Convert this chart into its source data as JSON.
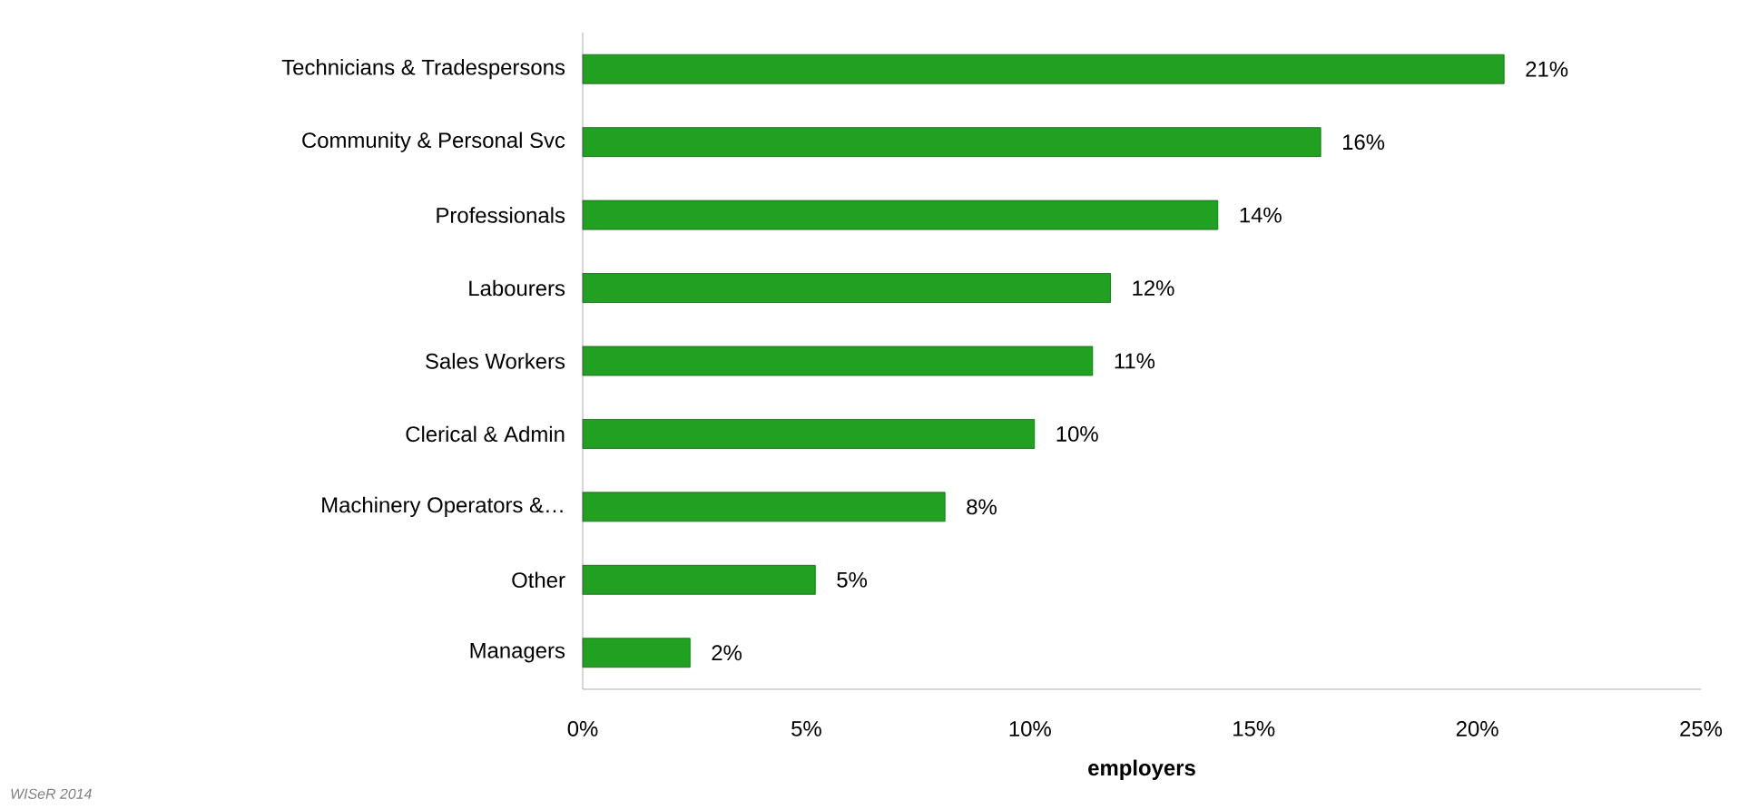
{
  "chart_data": {
    "type": "bar",
    "orientation": "horizontal",
    "xlabel": "employers",
    "categories": [
      "Technicians & Tradespersons",
      "Community & Personal Svc",
      "Professionals",
      "Labourers",
      "Sales Workers",
      "Clerical & Admin",
      "Machinery Operators &…",
      "Other",
      "Managers"
    ],
    "values": [
      20.6,
      16.5,
      14.2,
      11.8,
      11.4,
      10.1,
      8.1,
      5.2,
      2.4
    ],
    "value_labels": [
      "21%",
      "16%",
      "14%",
      "12%",
      "11%",
      "10%",
      "8%",
      "5%",
      "2%"
    ],
    "color": "#22a022",
    "xlim": [
      0,
      25
    ],
    "xticks": [
      {
        "value": 0,
        "label": "0%"
      },
      {
        "value": 5,
        "label": "5%"
      },
      {
        "value": 10,
        "label": "10%"
      },
      {
        "value": 15,
        "label": "15%"
      },
      {
        "value": 20,
        "label": "20%"
      },
      {
        "value": 25,
        "label": "25%"
      }
    ],
    "annotations": [
      "WISeR 2014"
    ]
  }
}
